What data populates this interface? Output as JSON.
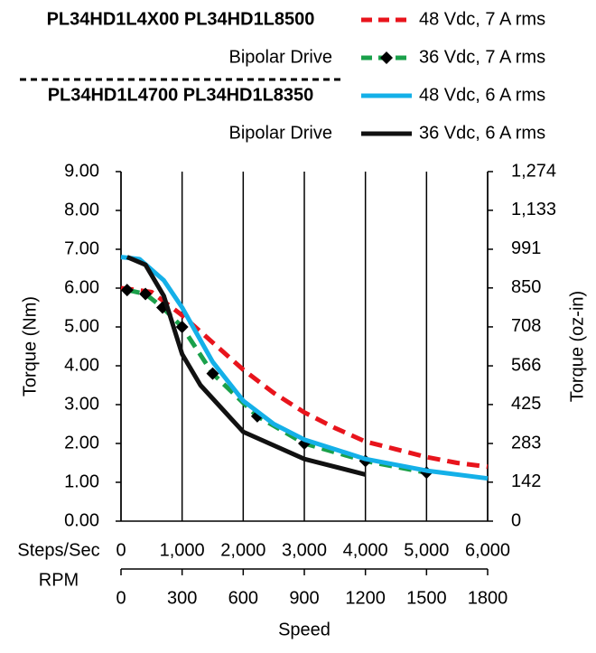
{
  "chart_data": {
    "type": "line",
    "header": [
      {
        "models": "PL34HD1L4X00  PL34HD1L8500",
        "drive": "Bipolar Drive"
      },
      {
        "models": "PL34HD1L4700  PL34HD1L8350",
        "drive": "Bipolar Drive"
      }
    ],
    "xlabel": "Speed",
    "xaxis_name": "Steps/Sec",
    "x2axis_name": "RPM",
    "ylabel": "Torque (Nm)",
    "y2label": "Torque (oz-in)",
    "xlim": [
      0,
      6000
    ],
    "xticks": [
      0,
      {
        "value": 1000,
        "label": "1,000"
      },
      {
        "value": 2000,
        "label": "2,000"
      },
      {
        "value": 3000,
        "label": "3,000"
      },
      {
        "value": 4000,
        "label": "4,000"
      },
      {
        "value": 5000,
        "label": "5,000"
      },
      {
        "value": 6000,
        "label": "6,000"
      }
    ],
    "x2lim": [
      0,
      1800
    ],
    "x2ticks": [
      0,
      300,
      600,
      900,
      1200,
      1500,
      1800
    ],
    "ylim": [
      0,
      9
    ],
    "yticks": [
      {
        "value": 0,
        "label": "0.00"
      },
      {
        "value": 1,
        "label": "1.00"
      },
      {
        "value": 2,
        "label": "2.00"
      },
      {
        "value": 3,
        "label": "3.00"
      },
      {
        "value": 4,
        "label": "4.00"
      },
      {
        "value": 5,
        "label": "5.00"
      },
      {
        "value": 6,
        "label": "6.00"
      },
      {
        "value": 7,
        "label": "7.00"
      },
      {
        "value": 8,
        "label": "8.00"
      },
      {
        "value": 9,
        "label": "9.00"
      }
    ],
    "y2lim": [
      0,
      1274
    ],
    "y2ticks": [
      0,
      142,
      283,
      425,
      566,
      708,
      850,
      991,
      {
        "value": 1133,
        "label": "1,133"
      },
      {
        "value": 1274,
        "label": "1,274"
      }
    ],
    "grid": "x",
    "series": [
      {
        "name": "48 Vdc, 7 A rms",
        "color": "#e8141c",
        "style": "dashed",
        "group": 0,
        "x": [
          0,
          500,
          1000,
          1500,
          2000,
          2500,
          3000,
          3500,
          4000,
          4500,
          5000,
          5500,
          6000
        ],
        "values": [
          6.0,
          5.9,
          5.3,
          4.6,
          3.9,
          3.3,
          2.8,
          2.4,
          2.05,
          1.85,
          1.65,
          1.5,
          1.4
        ]
      },
      {
        "name": "36 Vdc, 7 A rms",
        "color": "#1aa04a",
        "style": "dashed",
        "marker": "diamond",
        "group": 0,
        "x": [
          100,
          400,
          680,
          1000,
          1500,
          2230,
          3000,
          4000,
          5000
        ],
        "values": [
          5.95,
          5.85,
          5.5,
          5.0,
          3.8,
          2.7,
          2.0,
          1.55,
          1.25
        ]
      },
      {
        "name": "48 Vdc, 6 A rms",
        "color": "#14b0e8",
        "style": "solid",
        "group": 1,
        "x": [
          0,
          300,
          700,
          1000,
          1500,
          2000,
          2500,
          3000,
          4000,
          5000,
          6000
        ],
        "values": [
          6.8,
          6.75,
          6.2,
          5.5,
          4.1,
          3.1,
          2.5,
          2.1,
          1.6,
          1.3,
          1.1
        ]
      },
      {
        "name": "36 Vdc, 6 A rms",
        "color": "#111111",
        "style": "solid",
        "group": 1,
        "x": [
          100,
          400,
          700,
          900,
          1000,
          1300,
          2000,
          3000,
          4000
        ],
        "values": [
          6.8,
          6.6,
          5.8,
          4.8,
          4.3,
          3.5,
          2.3,
          1.6,
          1.2
        ]
      }
    ]
  }
}
